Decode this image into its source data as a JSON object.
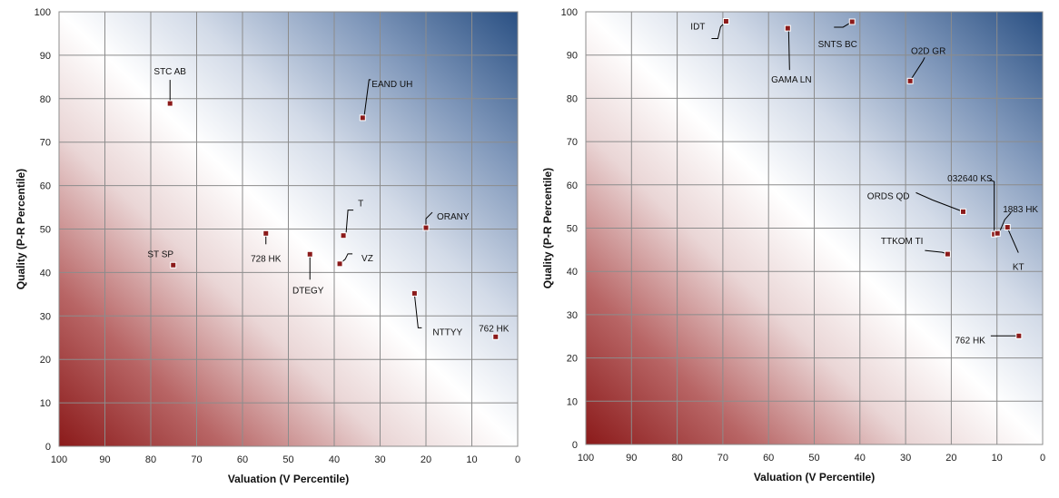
{
  "colors": {
    "low_corner": "#8b1a1a",
    "mid_band": "#ffffff",
    "high_corner": "#2a5083",
    "grid": "#8c8c8c",
    "marker": "#8b1a1a"
  },
  "chart_data": [
    {
      "type": "scatter",
      "title": "",
      "xlabel": "Valuation (V Percentile)",
      "ylabel": "Quality (P-R Percentile)",
      "xlim": [
        100,
        0
      ],
      "ylim": [
        0,
        100
      ],
      "x_reversed": true,
      "xticks": [
        "100",
        "90",
        "80",
        "70",
        "60",
        "50",
        "40",
        "30",
        "20",
        "10",
        "0"
      ],
      "yticks": [
        "0",
        "10",
        "20",
        "30",
        "40",
        "50",
        "60",
        "70",
        "80",
        "90",
        "100"
      ],
      "grid": true,
      "background": "diagonal gradient: red (high valuation, low quality) to white to blue (low valuation, high quality)",
      "points": [
        {
          "label": "STC AB",
          "x": 75.8,
          "y": 78.9
        },
        {
          "label": "EAND UH",
          "x": 33.8,
          "y": 75.6
        },
        {
          "label": "T",
          "x": 38.0,
          "y": 48.5
        },
        {
          "label": "ORANY",
          "x": 20.0,
          "y": 50.3
        },
        {
          "label": "728 HK",
          "x": 54.9,
          "y": 49.0
        },
        {
          "label": "ST SP",
          "x": 75.1,
          "y": 41.7
        },
        {
          "label": "DTEGY",
          "x": 45.3,
          "y": 44.2
        },
        {
          "label": "VZ",
          "x": 38.8,
          "y": 42.0
        },
        {
          "label": "NTTYY",
          "x": 22.5,
          "y": 35.2
        },
        {
          "label": "762 HK",
          "x": 4.8,
          "y": 25.2
        }
      ]
    },
    {
      "type": "scatter",
      "title": "",
      "xlabel": "Valuation (V Percentile)",
      "ylabel": "Quality (P-R Percentile)",
      "xlim": [
        100,
        0
      ],
      "ylim": [
        0,
        100
      ],
      "x_reversed": true,
      "xticks": [
        "100",
        "90",
        "80",
        "70",
        "60",
        "50",
        "40",
        "30",
        "20",
        "10",
        "0"
      ],
      "yticks": [
        "0",
        "10",
        "20",
        "30",
        "40",
        "50",
        "60",
        "70",
        "80",
        "90",
        "100"
      ],
      "grid": true,
      "background": "diagonal gradient: red (high valuation, low quality) to white to blue (low valuation, high quality)",
      "points": [
        {
          "label": "IDT",
          "x": 69.3,
          "y": 97.8
        },
        {
          "label": "GAMA LN",
          "x": 55.8,
          "y": 96.2
        },
        {
          "label": "SNTS BC",
          "x": 41.7,
          "y": 97.7
        },
        {
          "label": "O2D GR",
          "x": 29.0,
          "y": 84.0
        },
        {
          "label": "ORDS QD",
          "x": 17.4,
          "y": 53.8
        },
        {
          "label": "032640 KS",
          "x": 10.6,
          "y": 48.6
        },
        {
          "label": "1883 HK",
          "x": 9.9,
          "y": 48.8
        },
        {
          "label": "KT",
          "x": 7.7,
          "y": 50.2
        },
        {
          "label": "TTKOM TI",
          "x": 20.8,
          "y": 44.0
        },
        {
          "label": "762 HK",
          "x": 5.2,
          "y": 25.1
        }
      ]
    }
  ]
}
